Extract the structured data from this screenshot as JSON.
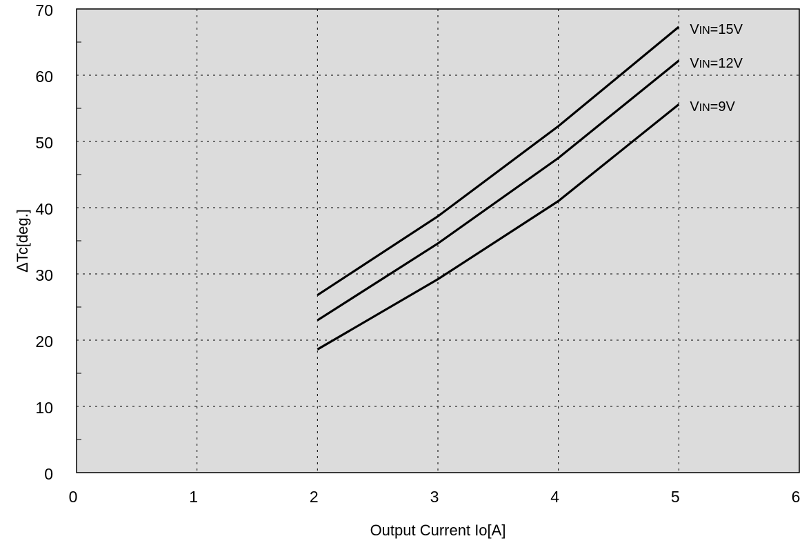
{
  "chart_data": {
    "type": "line",
    "title": "",
    "xlabel": "Output Current Io[A]",
    "ylabel": "ΔTc[deg.]",
    "xlim": [
      0,
      6
    ],
    "ylim": [
      0,
      70
    ],
    "xticks": [
      0,
      1,
      2,
      3,
      4,
      5,
      6
    ],
    "yticks": [
      0,
      10,
      20,
      30,
      40,
      50,
      60,
      70
    ],
    "grid": true,
    "background": "#dcdcdc",
    "series": [
      {
        "name": "VIN=15V",
        "label_main": "V",
        "label_sub": "IN",
        "label_rest": "=15V",
        "x": [
          2,
          3,
          4,
          5
        ],
        "y": [
          26.8,
          38.7,
          52.3,
          67.3
        ]
      },
      {
        "name": "VIN=12V",
        "label_main": "V",
        "label_sub": "IN",
        "label_rest": "=12V",
        "x": [
          2,
          3,
          4,
          5
        ],
        "y": [
          23.0,
          34.6,
          47.5,
          62.2
        ]
      },
      {
        "name": "VIN=9V",
        "label_main": "V",
        "label_sub": "IN",
        "label_rest": "=9V",
        "x": [
          2,
          3,
          4,
          5
        ],
        "y": [
          18.6,
          29.2,
          41.0,
          55.6
        ]
      }
    ]
  }
}
